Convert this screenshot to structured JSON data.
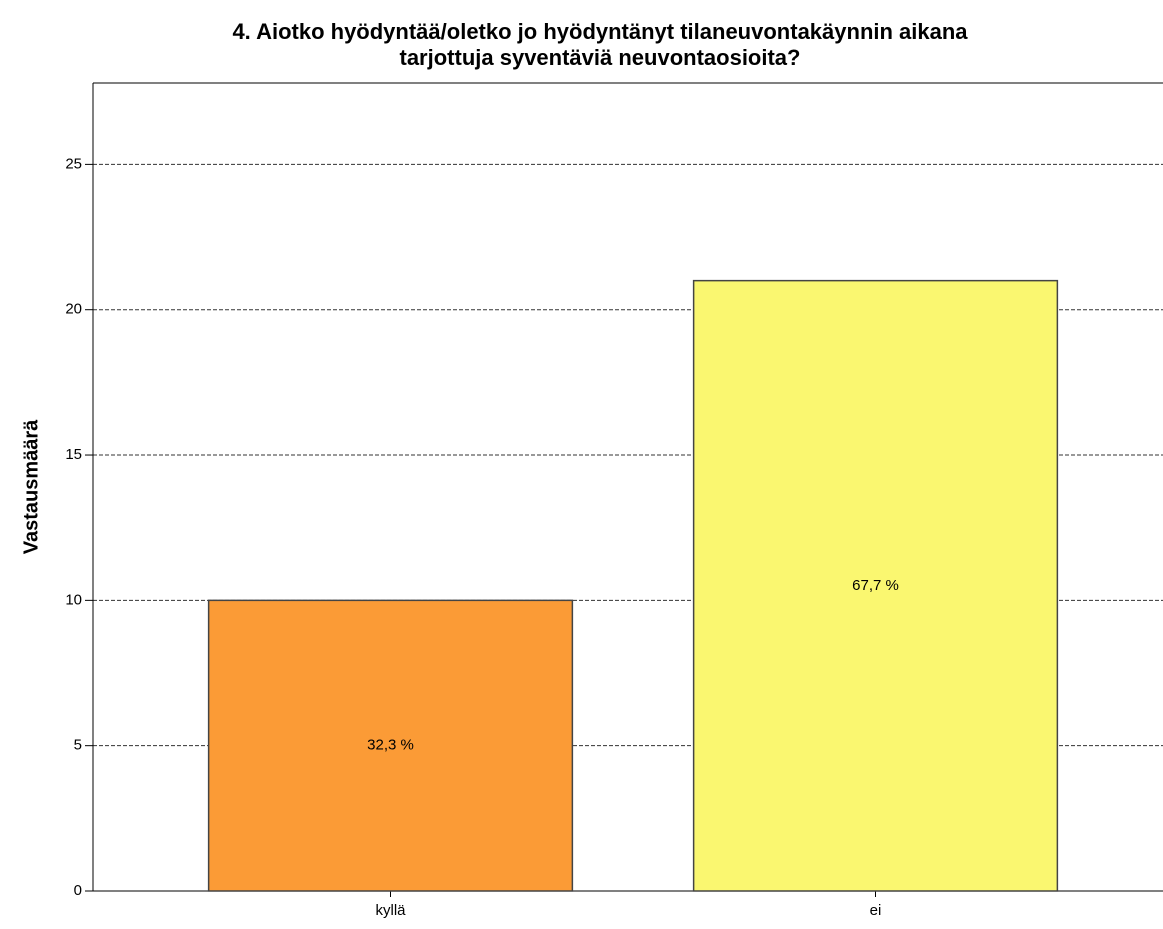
{
  "chart_data": {
    "type": "bar",
    "title": [
      "4. Aiotko hyödyntää/oletko jo hyödyntänyt tilaneuvontakäynnin aikana",
      "tarjottuja syventäviä neuvontaosioita?"
    ],
    "y_label": "Vastausmäärä",
    "categories": [
      "kyllä",
      "ei"
    ],
    "values": [
      10,
      21
    ],
    "percent_labels": [
      "32,3 %",
      "67,7 %"
    ],
    "colors": [
      "#fb9b36",
      "#faf770"
    ],
    "ylim": [
      0,
      27.8
    ],
    "yticks": [
      0,
      5,
      10,
      15,
      20,
      25
    ],
    "grid": true
  }
}
